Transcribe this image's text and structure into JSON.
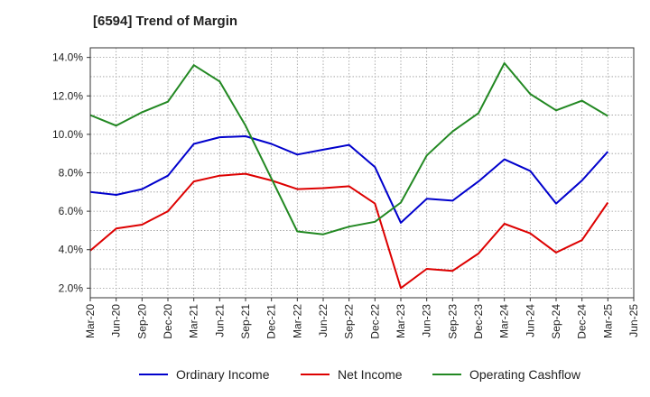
{
  "title": "[6594]  Trend of Margin",
  "colors": {
    "ordinary": "#0000cc",
    "net": "#dd0000",
    "opcf": "#228822",
    "grid": "#999999",
    "frame": "#333333"
  },
  "chart_data": {
    "type": "line",
    "title": "[6594]  Trend of Margin",
    "xlabel": "",
    "ylabel": "",
    "grid": true,
    "legend_position": "bottom",
    "ylim": [
      1.5,
      14.5
    ],
    "yticks": [
      2.0,
      4.0,
      6.0,
      8.0,
      10.0,
      12.0,
      14.0
    ],
    "ytick_labels": [
      "2.0%",
      "4.0%",
      "6.0%",
      "8.0%",
      "10.0%",
      "12.0%",
      "14.0%"
    ],
    "x_tick_labels": [
      "Mar-20",
      "Jun-20",
      "Sep-20",
      "Dec-20",
      "Mar-21",
      "Jun-21",
      "Sep-21",
      "Dec-21",
      "Mar-22",
      "Jun-22",
      "Sep-22",
      "Dec-22",
      "Mar-23",
      "Jun-23",
      "Sep-23",
      "Dec-23",
      "Mar-24",
      "Jun-24",
      "Sep-24",
      "Dec-24",
      "Mar-25",
      "Jun-25"
    ],
    "categories": [
      "Mar-20",
      "Jun-20",
      "Sep-20",
      "Dec-20",
      "Mar-21",
      "Jun-21",
      "Sep-21",
      "Dec-21",
      "Mar-22",
      "Jun-22",
      "Sep-22",
      "Dec-22",
      "Mar-23",
      "Jun-23",
      "Sep-23",
      "Dec-23",
      "Mar-24",
      "Jun-24",
      "Sep-24",
      "Dec-24",
      "Mar-25"
    ],
    "series": [
      {
        "name": "Ordinary Income",
        "color": "#0000cc",
        "values": [
          7.0,
          6.85,
          7.15,
          7.85,
          9.5,
          9.85,
          9.9,
          9.5,
          8.95,
          9.2,
          9.45,
          8.3,
          5.4,
          6.65,
          6.55,
          7.55,
          8.7,
          8.1,
          6.4,
          7.6,
          9.1
        ]
      },
      {
        "name": "Net Income",
        "color": "#dd0000",
        "values": [
          3.95,
          5.1,
          5.3,
          6.0,
          7.55,
          7.85,
          7.95,
          7.6,
          7.15,
          7.2,
          7.3,
          6.4,
          2.0,
          3.0,
          2.9,
          3.8,
          5.35,
          4.85,
          3.85,
          4.5,
          6.45
        ]
      },
      {
        "name": "Operating Cashflow",
        "color": "#228822",
        "values": [
          11.0,
          10.45,
          11.15,
          11.7,
          13.6,
          12.75,
          10.45,
          7.7,
          4.95,
          4.8,
          5.2,
          5.45,
          6.45,
          8.9,
          10.15,
          11.1,
          13.7,
          12.1,
          11.25,
          11.75,
          10.95
        ]
      }
    ]
  },
  "legend": [
    {
      "label": "Ordinary Income",
      "color": "#0000cc"
    },
    {
      "label": "Net Income",
      "color": "#dd0000"
    },
    {
      "label": "Operating Cashflow",
      "color": "#228822"
    }
  ]
}
